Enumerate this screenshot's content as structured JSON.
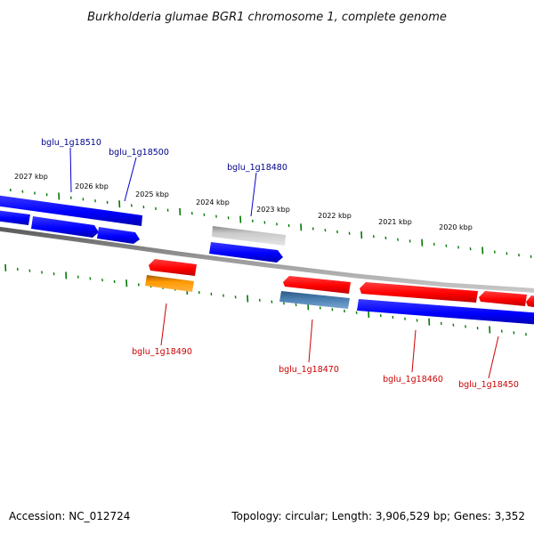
{
  "title": "Burkholderia glumae BGR1 chromosome 1, complete genome",
  "accession": "Accession: NC_012724",
  "summary": "Topology: circular; Length: 3,906,529 bp; Genes: 3,352",
  "colors": {
    "plus_gene": "#0000ff",
    "minus_gene": "#ff0000",
    "backbone": "#808080",
    "ticks": "#007a00",
    "highlight_gray": "#b8b8b8",
    "highlight_orange": "#ff9900",
    "highlight_steel": "#4a7fb0",
    "plus_label": "#00008b",
    "minus_label": "#cc0000"
  },
  "kbp_ticks": [
    {
      "label": "2027 kbp"
    },
    {
      "label": "2026 kbp"
    },
    {
      "label": "2025 kbp"
    },
    {
      "label": "2024 kbp"
    },
    {
      "label": "2023 kbp"
    },
    {
      "label": "2022 kbp"
    },
    {
      "label": "2021 kbp"
    },
    {
      "label": "2020 kbp"
    }
  ],
  "gene_labels": [
    {
      "name": "bglu_1g18510",
      "strand": "plus"
    },
    {
      "name": "bglu_1g18500",
      "strand": "plus"
    },
    {
      "name": "bglu_1g18480",
      "strand": "plus"
    },
    {
      "name": "bglu_1g18490",
      "strand": "minus"
    },
    {
      "name": "bglu_1g18470",
      "strand": "minus"
    },
    {
      "name": "bglu_1g18460",
      "strand": "minus"
    },
    {
      "name": "bglu_1g18450",
      "strand": "minus"
    }
  ]
}
